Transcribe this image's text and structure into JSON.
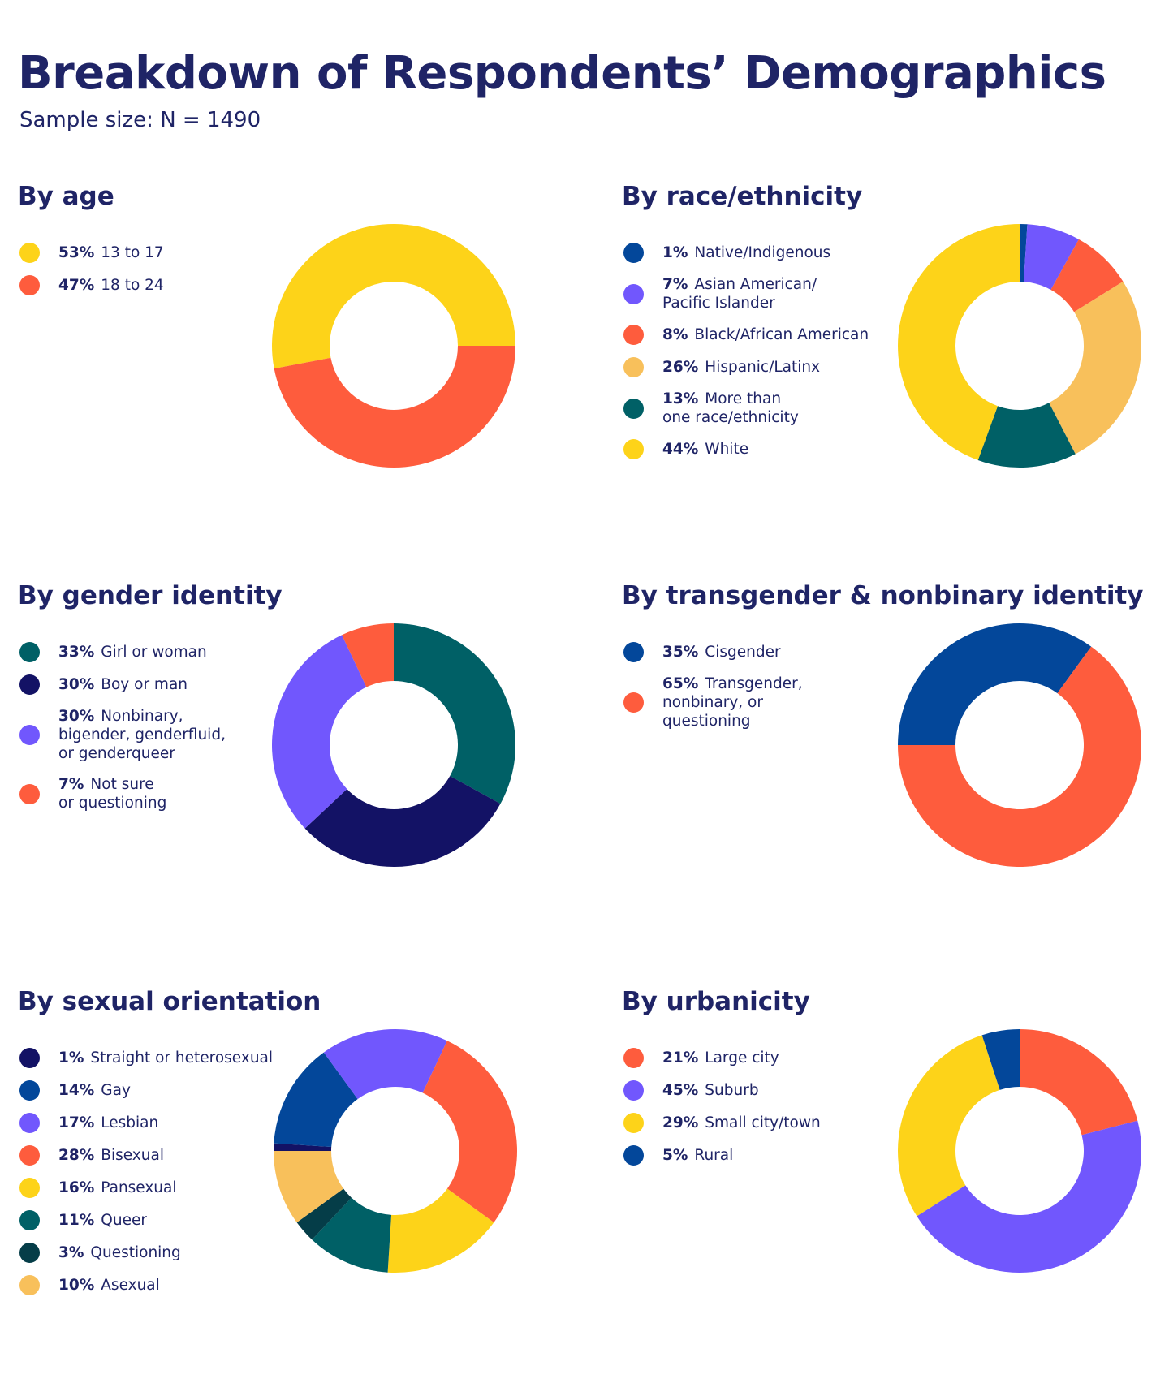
{
  "title": "Breakdown of Respondents’ Demographics",
  "subtitle": "Sample size: N = 1490",
  "colors": {
    "yellow": "#FDD319",
    "orange": "#FE5C3D",
    "navy": "#131265",
    "blue": "#03479A",
    "purple": "#7157FD",
    "teal": "#006066",
    "light_orange": "#F8C05B",
    "dark_teal": "#053D48"
  },
  "chart_data": [
    {
      "type": "pie",
      "subtype": "donut",
      "title": "By age",
      "categories": [
        "13 to 17",
        "18 to 24"
      ],
      "values": [
        53,
        47
      ],
      "labels": [
        "53%",
        "47%"
      ],
      "colors": [
        "#FDD319",
        "#FE5C3D"
      ],
      "start_angle_deg": 0,
      "direction": "counterclockwise"
    },
    {
      "type": "pie",
      "subtype": "donut",
      "title": "By race/ethnicity",
      "categories": [
        "Native/Indigenous",
        "Asian American/\nPacific Islander",
        "Black/African American",
        "Hispanic/Latinx",
        "More than\none race/ethnicity",
        "White"
      ],
      "values": [
        1,
        7,
        8,
        26,
        13,
        44
      ],
      "labels": [
        "1%",
        "7%",
        "8%",
        "26%",
        "13%",
        "44%"
      ],
      "colors": [
        "#03479A",
        "#7157FD",
        "#FE5C3D",
        "#F8C05B",
        "#006066",
        "#FDD319"
      ],
      "start_angle_deg": 270,
      "direction": "clockwise"
    },
    {
      "type": "pie",
      "subtype": "donut",
      "title": "By gender identity",
      "categories": [
        "Girl or woman",
        "Boy or man",
        "Nonbinary,\nbigender, genderfluid,\nor genderqueer",
        "Not sure\nor questioning"
      ],
      "values": [
        33,
        30,
        30,
        7
      ],
      "labels": [
        "33%",
        "30%",
        "30%",
        "7%"
      ],
      "colors": [
        "#006066",
        "#131265",
        "#7157FD",
        "#FE5C3D"
      ],
      "start_angle_deg": 270,
      "direction": "clockwise"
    },
    {
      "type": "pie",
      "subtype": "donut",
      "title": "By transgender & nonbinary identity",
      "categories": [
        "Cisgender",
        "Transgender,\nnonbinary, or\nquestioning"
      ],
      "values": [
        35,
        65
      ],
      "labels": [
        "35%",
        "65%"
      ],
      "colors": [
        "#03479A",
        "#FE5C3D"
      ],
      "start_angle_deg": 180,
      "direction": "clockwise"
    },
    {
      "type": "pie",
      "subtype": "donut",
      "title": "By sexual orientation",
      "categories": [
        "Straight or heterosexual",
        "Gay",
        "Lesbian",
        "Bisexual",
        "Pansexual",
        "Queer",
        "Questioning",
        "Asexual"
      ],
      "values": [
        1,
        14,
        17,
        28,
        16,
        11,
        3,
        10
      ],
      "labels": [
        "1%",
        "14%",
        "17%",
        "28%",
        "16%",
        "11%",
        "3%",
        "10%"
      ],
      "colors": [
        "#131265",
        "#03479A",
        "#7157FD",
        "#FE5C3D",
        "#FDD319",
        "#006066",
        "#053D48",
        "#F8C05B"
      ],
      "start_angle_deg": 180,
      "direction": "clockwise"
    },
    {
      "type": "pie",
      "subtype": "donut",
      "title": "By urbanicity",
      "categories": [
        "Large city",
        "Suburb",
        "Small city/town",
        "Rural"
      ],
      "values": [
        21,
        45,
        29,
        5
      ],
      "labels": [
        "21%",
        "45%",
        "29%",
        "5%"
      ],
      "colors": [
        "#FE5C3D",
        "#7157FD",
        "#FDD319",
        "#03479A"
      ],
      "start_angle_deg": 270,
      "direction": "clockwise"
    }
  ]
}
